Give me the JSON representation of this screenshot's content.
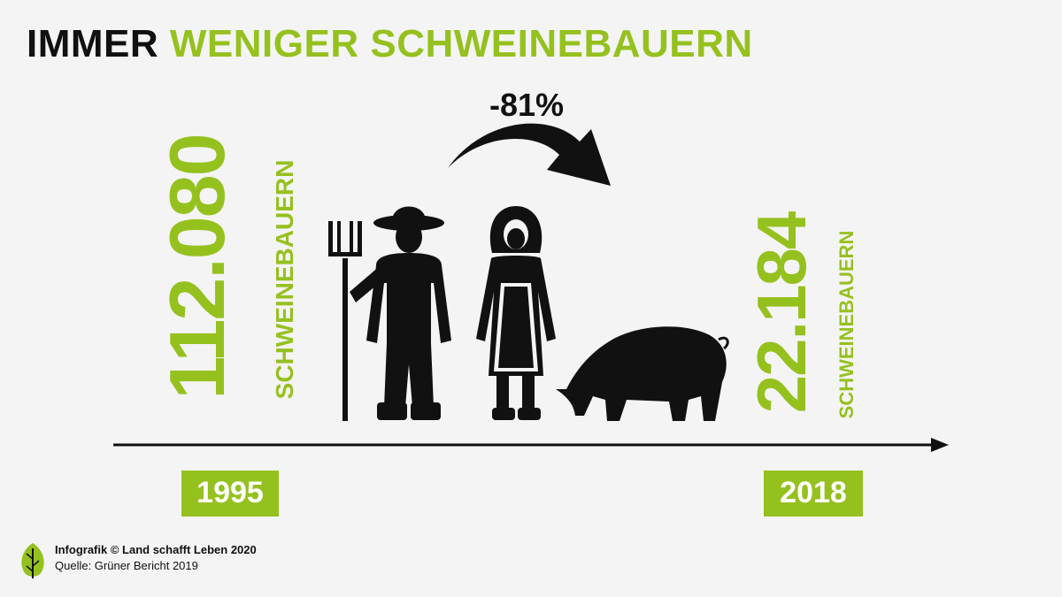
{
  "title": {
    "part_dark": "IMMER",
    "part_green": "WENIGER SCHWEINEBAUERN"
  },
  "change_label": "-81%",
  "footer": {
    "credit": "Infografik © Land schafft Leben 2020",
    "source": "Quelle: Grüner Bericht 2019"
  },
  "colors": {
    "accent_green": "#95c11f",
    "text_dark": "#111111",
    "background": "#f4f4f4"
  },
  "icons": [
    "farmer-icon",
    "pitchfork-icon",
    "farmer-woman-icon",
    "pig-icon",
    "curved-arrow-icon",
    "leaf-logo-icon"
  ],
  "chart_data": {
    "type": "bar",
    "title": "IMMER WENIGER SCHWEINEBAUERN",
    "categories": [
      "1995",
      "2018"
    ],
    "series": [
      {
        "name": "",
        "values": [
          112080,
          22184
        ]
      }
    ],
    "value_labels": [
      "112.080",
      "22.184"
    ],
    "unit_label": "SCHWEINEBAUERN",
    "change": "-81%",
    "xlabel": "",
    "ylabel": ""
  }
}
